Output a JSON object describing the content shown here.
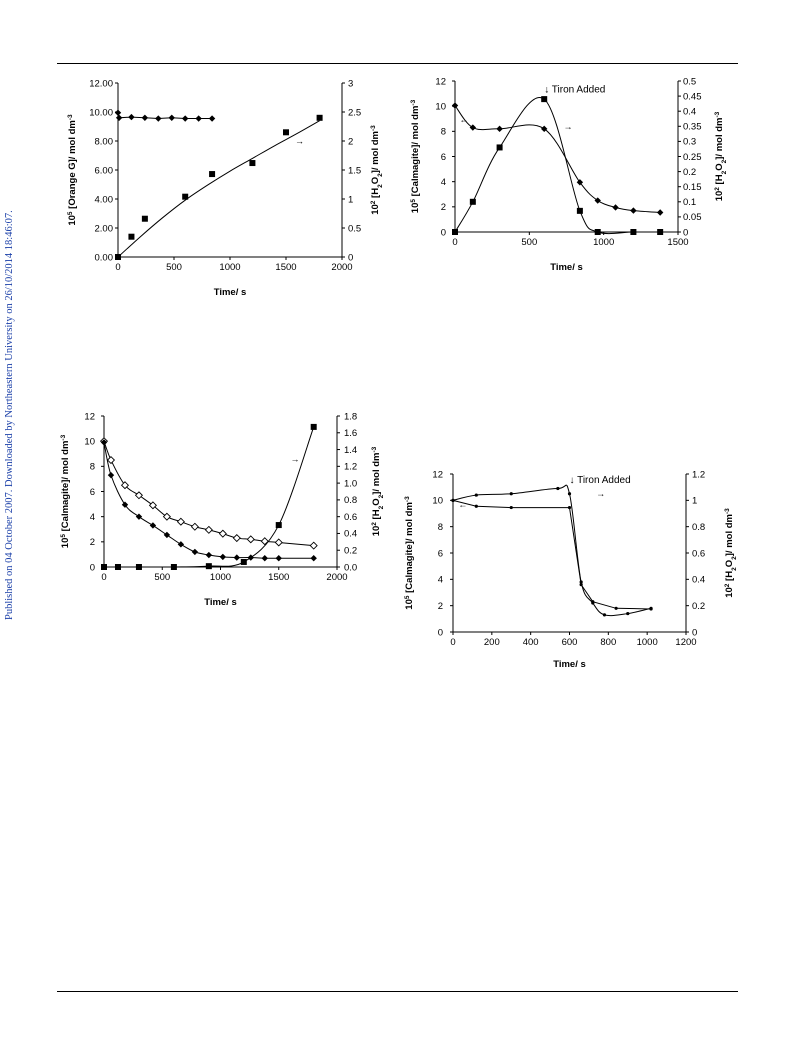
{
  "page": {
    "side_note": "Published on 04 October 2007. Downloaded by Northeastern University on 26/10/2014 18:46:07."
  },
  "chart_data": [
    {
      "type": "scatter",
      "xlabel": "Time/ s",
      "ylabel": "10^5 [Orange G]/ mol dm^-3",
      "y2label": "10^2 [H2O2]/ mol dm^-3",
      "xlim": [
        0,
        2000
      ],
      "ylim": [
        0,
        12
      ],
      "y2lim": [
        0,
        3
      ],
      "x_ticks": [
        "0",
        "500",
        "1000",
        "1500",
        "2000"
      ],
      "y_ticks": [
        "0.00",
        "2.00",
        "4.00",
        "6.00",
        "8.00",
        "10.00",
        "12.00"
      ],
      "y2_ticks": [
        "0",
        "0.5",
        "1",
        "1.5",
        "2",
        "2.5",
        "3"
      ],
      "annotations": [
        {
          "text": "→",
          "x": 1620,
          "y": 1.95,
          "axis": "y2"
        }
      ],
      "series": [
        {
          "marker": "diamond",
          "axis": "y",
          "line": "straight",
          "points": [
            [
              0,
              9.95
            ],
            [
              10,
              9.6
            ],
            [
              120,
              9.65
            ],
            [
              240,
              9.6
            ],
            [
              360,
              9.55
            ],
            [
              480,
              9.6
            ],
            [
              600,
              9.55
            ],
            [
              720,
              9.55
            ],
            [
              840,
              9.55
            ]
          ]
        },
        {
          "marker": "square",
          "axis": "y2",
          "line": "none",
          "points": [
            [
              0,
              0
            ],
            [
              120,
              0.35
            ],
            [
              240,
              0.66
            ],
            [
              600,
              1.04
            ],
            [
              840,
              1.43
            ],
            [
              1200,
              1.62
            ],
            [
              1500,
              2.15
            ],
            [
              1800,
              2.4
            ]
          ]
        },
        {
          "marker": "none",
          "axis": "y2",
          "line": "smooth",
          "points": [
            [
              0,
              0
            ],
            [
              200,
              0.35
            ],
            [
              400,
              0.68
            ],
            [
              600,
              0.98
            ],
            [
              800,
              1.24
            ],
            [
              1000,
              1.48
            ],
            [
              1200,
              1.7
            ],
            [
              1400,
              1.92
            ],
            [
              1600,
              2.13
            ],
            [
              1800,
              2.35
            ]
          ]
        }
      ]
    },
    {
      "type": "scatter",
      "xlabel": "Time/ s",
      "ylabel": "10^5 [Calmagite]/ mol dm^-3",
      "y2label": "10^2 [H2O2]/ mol dm^-3",
      "xlim": [
        0,
        1500
      ],
      "ylim": [
        0,
        12
      ],
      "y2lim": [
        0,
        0.5
      ],
      "x_ticks": [
        "0",
        "500",
        "1000",
        "1500"
      ],
      "y_ticks": [
        "0",
        "2",
        "4",
        "6",
        "8",
        "10",
        "12"
      ],
      "y2_ticks": [
        "0",
        "0.05",
        "0.1",
        "0.15",
        "0.2",
        "0.25",
        "0.3",
        "0.35",
        "0.4",
        "0.45",
        "0.5"
      ],
      "annotations": [
        {
          "text": "↓ Tiron Added",
          "x": 600,
          "y": 0.462,
          "axis": "y2"
        },
        {
          "text": "→",
          "x": 760,
          "y": 0.34,
          "axis": "y2"
        },
        {
          "text": "←",
          "x": 60,
          "y": 8.7,
          "axis": "y"
        }
      ],
      "series": [
        {
          "marker": "diamond",
          "axis": "y",
          "line": "smooth",
          "points": [
            [
              0,
              10.05
            ],
            [
              120,
              8.3
            ],
            [
              300,
              8.2
            ],
            [
              600,
              8.2
            ],
            [
              840,
              3.95
            ],
            [
              960,
              2.5
            ],
            [
              1080,
              1.95
            ],
            [
              1200,
              1.7
            ],
            [
              1380,
              1.55
            ]
          ]
        },
        {
          "marker": "square",
          "axis": "y2",
          "line": "smooth",
          "points": [
            [
              0,
              0
            ],
            [
              120,
              0.1
            ],
            [
              300,
              0.28
            ],
            [
              600,
              0.44
            ],
            [
              840,
              0.07
            ],
            [
              960,
              0
            ],
            [
              1200,
              0
            ],
            [
              1380,
              0
            ]
          ]
        }
      ]
    },
    {
      "type": "scatter",
      "xlabel": "Time/ s",
      "ylabel": "10^5 [Calmagite]/ mol dm^-3",
      "y2label": "10^2 [H2O2]/ mol dm^-3",
      "xlim": [
        0,
        2000
      ],
      "ylim": [
        0,
        12
      ],
      "y2lim": [
        0,
        1.8
      ],
      "x_ticks": [
        "0",
        "500",
        "1000",
        "1500",
        "2000"
      ],
      "y_ticks": [
        "0",
        "2",
        "4",
        "6",
        "8",
        "10",
        "12"
      ],
      "y2_ticks": [
        "0.0",
        "0.2",
        "0.4",
        "0.6",
        "0.8",
        "1.0",
        "1.2",
        "1.4",
        "1.6",
        "1.8"
      ],
      "annotations": [
        {
          "text": "→",
          "x": 1640,
          "y": 1.25,
          "axis": "y2"
        }
      ],
      "series": [
        {
          "marker": "diamond-open",
          "axis": "y",
          "line": "smooth",
          "points": [
            [
              0,
              10
            ],
            [
              60,
              8.5
            ],
            [
              180,
              6.5
            ],
            [
              300,
              5.7
            ],
            [
              420,
              4.9
            ],
            [
              540,
              4.0
            ],
            [
              660,
              3.6
            ],
            [
              780,
              3.2
            ],
            [
              900,
              2.95
            ],
            [
              1020,
              2.65
            ],
            [
              1140,
              2.3
            ],
            [
              1260,
              2.2
            ],
            [
              1380,
              2.05
            ],
            [
              1500,
              1.95
            ],
            [
              1800,
              1.7
            ]
          ]
        },
        {
          "marker": "diamond",
          "axis": "y",
          "line": "smooth",
          "points": [
            [
              0,
              9.9
            ],
            [
              60,
              7.3
            ],
            [
              180,
              4.95
            ],
            [
              300,
              4.0
            ],
            [
              420,
              3.3
            ],
            [
              540,
              2.55
            ],
            [
              660,
              1.8
            ],
            [
              780,
              1.2
            ],
            [
              900,
              0.95
            ],
            [
              1020,
              0.8
            ],
            [
              1140,
              0.75
            ],
            [
              1260,
              0.75
            ],
            [
              1380,
              0.7
            ],
            [
              1500,
              0.7
            ],
            [
              1800,
              0.7
            ]
          ]
        },
        {
          "marker": "square",
          "axis": "y2",
          "line": "smooth",
          "points": [
            [
              0,
              0
            ],
            [
              120,
              0
            ],
            [
              300,
              0
            ],
            [
              600,
              0
            ],
            [
              900,
              0.01
            ],
            [
              1200,
              0.06
            ],
            [
              1500,
              0.5
            ],
            [
              1800,
              1.67
            ]
          ]
        }
      ]
    },
    {
      "type": "scatter",
      "xlabel": "Time/ s",
      "ylabel": "10^5 [Calmagite]/ mol dm^-3",
      "y2label": "10^2 [H2O2]/ mol dm^-3",
      "xlim": [
        0,
        1200
      ],
      "ylim": [
        0,
        12
      ],
      "y2lim": [
        0,
        1.2
      ],
      "x_ticks": [
        "0",
        "200",
        "400",
        "600",
        "800",
        "1000",
        "1200"
      ],
      "y_ticks": [
        "0",
        "2",
        "4",
        "6",
        "8",
        "10",
        "12"
      ],
      "y2_ticks": [
        "0",
        "0.2",
        "0.4",
        "0.6",
        "0.8",
        "1",
        "1.2"
      ],
      "annotations": [
        {
          "text": "↓ Tiron Added",
          "x": 600,
          "y": 1.13,
          "axis": "y2"
        },
        {
          "text": "→",
          "x": 760,
          "y": 1.03,
          "axis": "y2"
        },
        {
          "text": "←",
          "x": 50,
          "y": 9.45,
          "axis": "y"
        }
      ],
      "series": [
        {
          "marker": "dot",
          "axis": "y",
          "line": "straight",
          "points": [
            [
              0,
              10
            ],
            [
              120,
              9.55
            ],
            [
              300,
              9.45
            ],
            [
              600,
              9.45
            ],
            [
              660,
              3.6
            ],
            [
              720,
              2.3
            ],
            [
              840,
              1.8
            ],
            [
              1020,
              1.75
            ]
          ]
        },
        {
          "marker": "dot",
          "axis": "y2",
          "line": "smooth",
          "points": [
            [
              0,
              1.0
            ],
            [
              120,
              1.04
            ],
            [
              300,
              1.05
            ],
            [
              540,
              1.09
            ],
            [
              600,
              1.05
            ],
            [
              660,
              0.38
            ],
            [
              720,
              0.22
            ],
            [
              780,
              0.13
            ],
            [
              900,
              0.14
            ],
            [
              1020,
              0.18
            ]
          ]
        }
      ]
    }
  ]
}
